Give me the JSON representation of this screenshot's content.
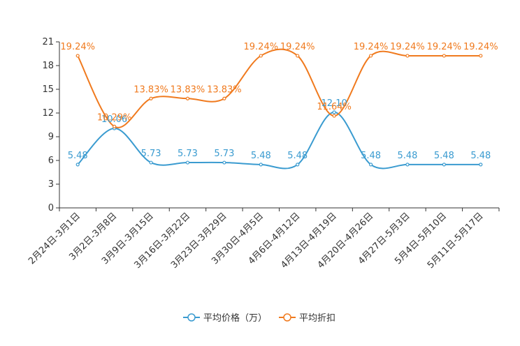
{
  "chart_data": {
    "type": "line",
    "categories": [
      "2月24日-3月1日",
      "3月2日-3月8日",
      "3月9日-3月15日",
      "3月16日-3月22日",
      "3月23日-3月29日",
      "3月30日-4月5日",
      "4月6日-4月12日",
      "4月13日-4月19日",
      "4月20日-4月26日",
      "4月27日-5月3日",
      "5月4日-5月10日",
      "5月11日-5月17日"
    ],
    "ylim": [
      0,
      21
    ],
    "yticks": [
      0,
      3,
      6,
      9,
      12,
      15,
      18,
      21
    ],
    "series": [
      {
        "name": "平均价格（万）",
        "color": "#3a9bd0",
        "values": [
          5.48,
          10.06,
          5.73,
          5.73,
          5.73,
          5.48,
          5.48,
          12.1,
          5.48,
          5.48,
          5.48,
          5.48
        ],
        "labels": [
          "5.48",
          "10.06",
          "5.73",
          "5.73",
          "5.73",
          "5.48",
          "5.48",
          "12.10",
          "5.48",
          "5.48",
          "5.48",
          "5.48"
        ]
      },
      {
        "name": "平均折扣",
        "color": "#f07a1e",
        "values": [
          19.24,
          10.29,
          13.83,
          13.83,
          13.83,
          19.24,
          19.24,
          11.64,
          19.24,
          19.24,
          19.24,
          19.24
        ],
        "labels": [
          "19.24%",
          "10.29%",
          "13.83%",
          "13.83%",
          "13.83%",
          "19.24%",
          "19.24%",
          "11.64%",
          "19.24%",
          "19.24%",
          "19.24%",
          "19.24%"
        ]
      }
    ],
    "legend_position": "bottom-center",
    "grid": false
  }
}
